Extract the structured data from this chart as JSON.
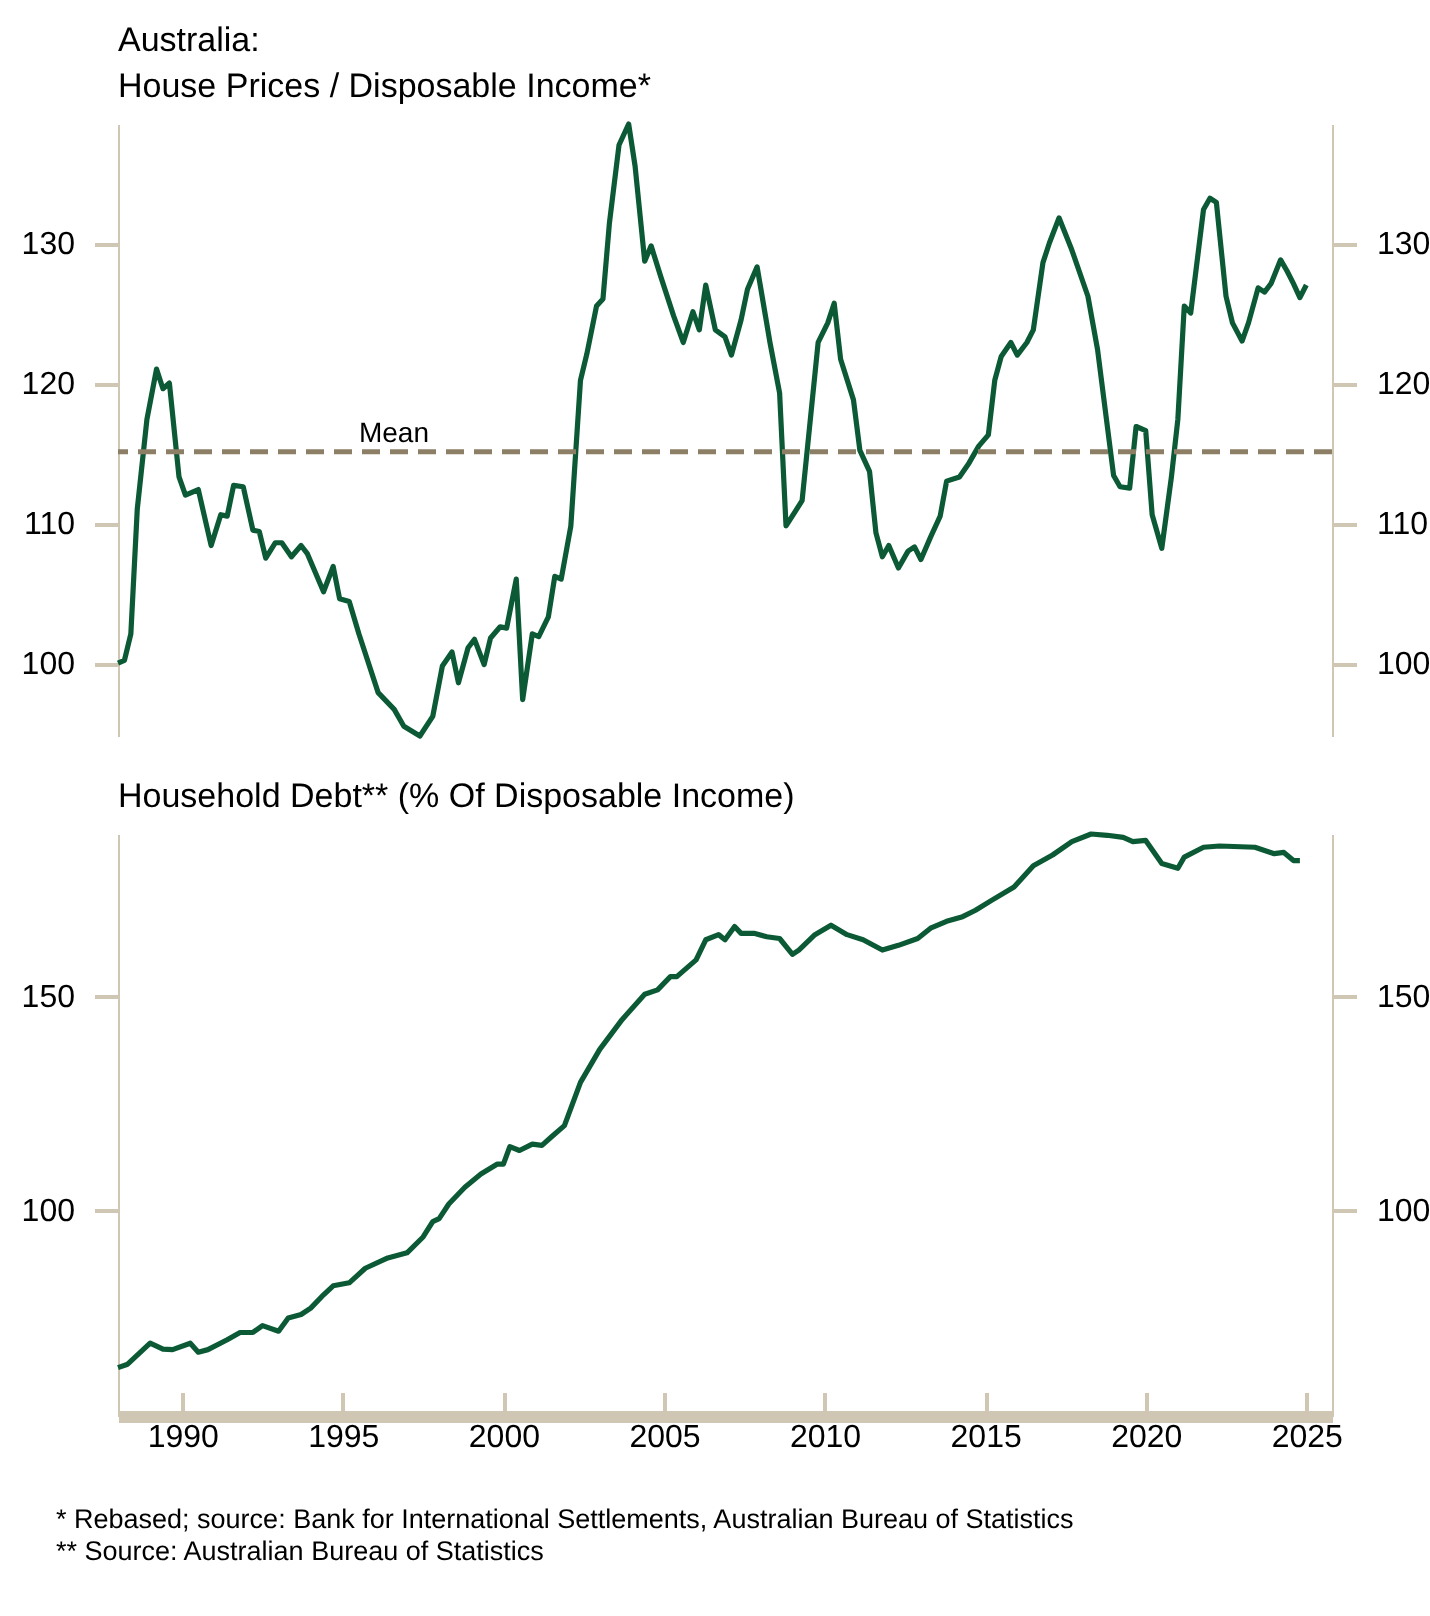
{
  "chart_data": [
    {
      "type": "line",
      "title": "Australia:",
      "subtitle": "House Prices / Disposable Income*",
      "x": [
        1988.0,
        1988.2,
        1988.4,
        1988.6,
        1988.9,
        1989.2,
        1989.4,
        1989.6,
        1989.9,
        1990.1,
        1990.5,
        1990.9,
        1991.2,
        1991.4,
        1991.6,
        1991.9,
        1992.2,
        1992.4,
        1992.6,
        1992.9,
        1993.1,
        1993.4,
        1993.7,
        1993.9,
        1994.4,
        1994.7,
        1994.9,
        1995.2,
        1995.5,
        1996.1,
        1996.6,
        1996.9,
        1997.4,
        1997.8,
        1998.1,
        1998.4,
        1998.6,
        1998.9,
        1999.1,
        1999.4,
        1999.6,
        1999.9,
        2000.1,
        2000.4,
        2000.6,
        2000.9,
        2001.1,
        2001.4,
        2001.6,
        2001.8,
        2002.1,
        2002.4,
        2002.6,
        2002.9,
        2003.1,
        2003.3,
        2003.6,
        2003.9,
        2004.1,
        2004.4,
        2004.6,
        2004.9,
        2005.3,
        2005.6,
        2005.9,
        2006.1,
        2006.3,
        2006.6,
        2006.9,
        2007.1,
        2007.4,
        2007.6,
        2007.9,
        2008.3,
        2008.6,
        2008.8,
        2009.3,
        2009.8,
        2010.1,
        2010.3,
        2010.5,
        2010.9,
        2011.1,
        2011.4,
        2011.6,
        2011.8,
        2012.0,
        2012.3,
        2012.6,
        2012.8,
        2013.0,
        2013.3,
        2013.6,
        2013.8,
        2014.2,
        2014.5,
        2014.8,
        2015.1,
        2015.3,
        2015.5,
        2015.8,
        2016.0,
        2016.3,
        2016.5,
        2016.8,
        2017.0,
        2017.3,
        2017.7,
        2018.2,
        2018.5,
        2019.0,
        2019.2,
        2019.5,
        2019.7,
        2020.0,
        2020.2,
        2020.5,
        2020.8,
        2021.0,
        2021.2,
        2021.4,
        2021.8,
        2022.0,
        2022.2,
        2022.5,
        2022.7,
        2023.0,
        2023.2,
        2023.5,
        2023.7,
        2023.9,
        2024.2,
        2024.4,
        2024.6,
        2024.8,
        2025.0
      ],
      "series": [
        {
          "color": "#0b5a35",
          "values": [
            100,
            100.2,
            102.1,
            111,
            117.4,
            121,
            119.6,
            120,
            113.3,
            112,
            112.4,
            108.4,
            110.6,
            110.5,
            112.7,
            112.6,
            109.5,
            109.4,
            107.5,
            108.6,
            108.6,
            107.6,
            108.4,
            107.8,
            105.1,
            106.9,
            104.6,
            104.4,
            102.1,
            97.9,
            96.7,
            95.5,
            94.8,
            96.2,
            99.8,
            100.8,
            98.6,
            101.1,
            101.7,
            99.9,
            101.8,
            102.6,
            102.5,
            106,
            97.4,
            102.1,
            101.9,
            103.3,
            106.2,
            106,
            109.8,
            120.2,
            122.1,
            125.5,
            126,
            131.4,
            137,
            138.5,
            135.5,
            128.7,
            129.8,
            127.6,
            124.8,
            122.9,
            125.1,
            123.8,
            127,
            123.8,
            123.3,
            122,
            124.5,
            126.7,
            128.3,
            122.9,
            119.3,
            109.8,
            111.6,
            122.9,
            124.3,
            125.7,
            121.7,
            118.8,
            115.2,
            113.7,
            109.3,
            107.6,
            108.4,
            106.8,
            108,
            108.3,
            107.4,
            109,
            110.5,
            113,
            113.3,
            114.3,
            115.5,
            116.3,
            120.2,
            121.9,
            122.9,
            122,
            122.9,
            123.8,
            128.6,
            130,
            131.8,
            129.5,
            126.2,
            122.4,
            113.4,
            112.6,
            112.5,
            116.9,
            116.6,
            110.6,
            108.2,
            113.3,
            117.4,
            125.5,
            125,
            132.4,
            133.2,
            132.9,
            126.2,
            124.3,
            123,
            124.3,
            126.8,
            126.5,
            127.1,
            128.8,
            128,
            127.1,
            126.1,
            127
          ]
        }
      ],
      "xlim": [
        1988,
        2025.8
      ],
      "ylim": [
        94.8,
        138.5
      ],
      "yticks": [
        100,
        110,
        120,
        130
      ],
      "y2lim": [
        94.8,
        138.5
      ],
      "y2ticks": [
        100,
        110,
        120,
        130
      ],
      "tick_labels": "y",
      "ref_lines": [
        {
          "axis": "y",
          "value": 115.1,
          "label": "Mean",
          "color": "#8c7f66",
          "line_style": "dashed"
        }
      ]
    },
    {
      "type": "line",
      "title": "Household Debt** (% Of Disposable Income)",
      "x": [
        1988.0,
        1988.3,
        1989.0,
        1989.4,
        1989.7,
        1990.25,
        1990.5,
        1990.8,
        1991.4,
        1991.8,
        1992.2,
        1992.5,
        1993.0,
        1993.3,
        1993.7,
        1994.0,
        1994.4,
        1994.7,
        1995.2,
        1995.7,
        1996.4,
        1997.0,
        1997.5,
        1997.8,
        1998.0,
        1998.3,
        1998.8,
        1999.3,
        1999.8,
        2000.0,
        2000.2,
        2000.5,
        2000.9,
        2001.2,
        2001.5,
        2001.9,
        2002.4,
        2003.0,
        2003.7,
        2004.4,
        2004.8,
        2005.2,
        2005.4,
        2006.0,
        2006.3,
        2006.7,
        2006.9,
        2007.2,
        2007.4,
        2007.8,
        2008.2,
        2008.6,
        2009.0,
        2009.2,
        2009.7,
        2010.2,
        2010.7,
        2011.2,
        2011.8,
        2012.3,
        2012.9,
        2013.3,
        2013.8,
        2014.3,
        2014.7,
        2015.2,
        2015.9,
        2016.5,
        2017.1,
        2017.7,
        2018.3,
        2018.8,
        2019.3,
        2019.6,
        2020.0,
        2020.5,
        2021.0,
        2021.2,
        2021.8,
        2022.3,
        2023.4,
        2024.0,
        2024.3,
        2024.6,
        2024.8
      ],
      "series": [
        {
          "color": "#0b5a35",
          "values": [
            63.3,
            64.1,
            69,
            67.6,
            67.5,
            69,
            66.9,
            67.5,
            69.8,
            71.5,
            71.5,
            73.1,
            71.8,
            74.9,
            75.7,
            77.2,
            80.3,
            82.4,
            83.1,
            86.5,
            88.9,
            90.1,
            93.8,
            97.4,
            98.1,
            101.5,
            105.4,
            108.5,
            110.8,
            110.8,
            114.9,
            114,
            115.5,
            115.2,
            117.2,
            119.8,
            129.9,
            137.6,
            144.6,
            150.5,
            151.5,
            154.6,
            154.6,
            158.5,
            163.2,
            164.4,
            163.2,
            166.3,
            164.7,
            164.7,
            163.9,
            163.5,
            159.8,
            160.8,
            164.4,
            166.6,
            164.4,
            163.2,
            160.8,
            161.9,
            163.5,
            165.9,
            167.5,
            168.6,
            170.1,
            172.4,
            175.5,
            180.5,
            183,
            186.1,
            187.9,
            187.6,
            187.1,
            186.1,
            186.4,
            181,
            179.9,
            182.5,
            184.8,
            185.1,
            184.8,
            183.3,
            183.6,
            181.7,
            181.7
          ]
        }
      ],
      "xlim": [
        1988,
        2025.8
      ],
      "xticks": [
        1990,
        1995,
        2000,
        2005,
        2010,
        2015,
        2020,
        2025
      ],
      "ylim": [
        52,
        187.9
      ],
      "yticks": [
        100,
        150
      ],
      "y2lim": [
        52,
        187.9
      ],
      "y2ticks": [
        100,
        150
      ],
      "annotations": [
        "*  Rebased; source: Bank for International Settlements, Australian Bureau of Statistics",
        "** Source: Australian Bureau of Statistics"
      ]
    }
  ]
}
